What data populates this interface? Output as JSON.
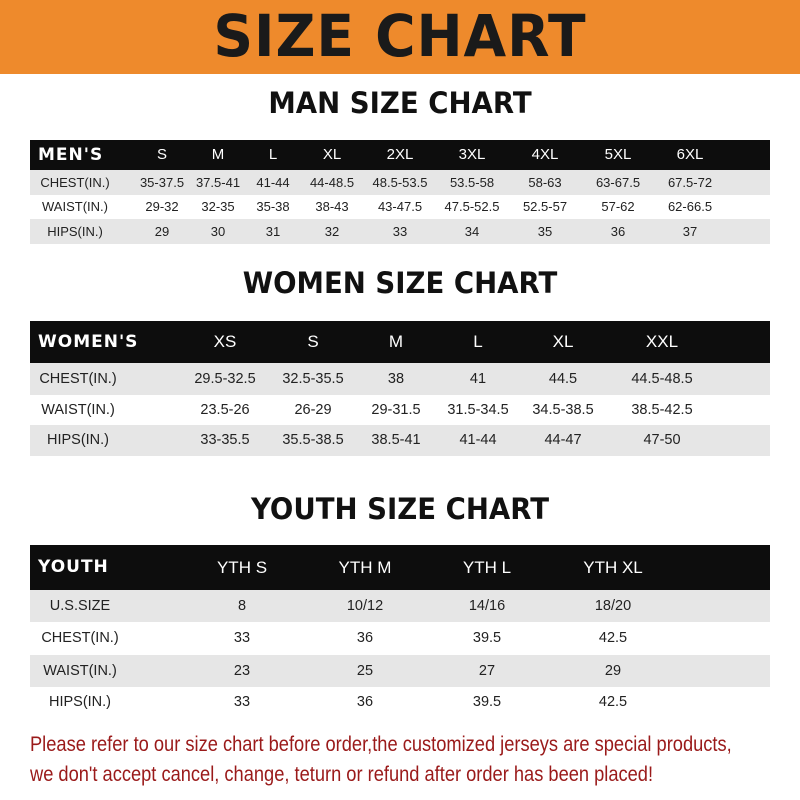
{
  "banner": {
    "title": "SIZE CHART",
    "color": "#ee8a2c"
  },
  "men": {
    "title": "MAN SIZE CHART",
    "header": [
      "MEN'S",
      "S",
      "M",
      "L",
      "XL",
      "2XL",
      "3XL",
      "4XL",
      "5XL",
      "6XL"
    ],
    "rows": [
      [
        "CHEST(IN.)",
        "35-37.5",
        "37.5-41",
        "41-44",
        "44-48.5",
        "48.5-53.5",
        "53.5-58",
        "58-63",
        "63-67.5",
        "67.5-72"
      ],
      [
        "WAIST(IN.)",
        "29-32",
        "32-35",
        "35-38",
        "38-43",
        "43-47.5",
        "47.5-52.5",
        "52.5-57",
        "57-62",
        "62-66.5"
      ],
      [
        "HIPS(IN.)",
        "29",
        "30",
        "31",
        "32",
        "33",
        "34",
        "35",
        "36",
        "37"
      ]
    ]
  },
  "women": {
    "title": "WOMEN SIZE CHART",
    "header": [
      "WOMEN'S",
      "XS",
      "S",
      "M",
      "L",
      "XL",
      "XXL"
    ],
    "rows": [
      [
        "CHEST(IN.)",
        "29.5-32.5",
        "32.5-35.5",
        "38",
        "41",
        "44.5",
        "44.5-48.5"
      ],
      [
        "WAIST(IN.)",
        "23.5-26",
        "26-29",
        "29-31.5",
        "31.5-34.5",
        "34.5-38.5",
        "38.5-42.5"
      ],
      [
        "HIPS(IN.)",
        "33-35.5",
        "35.5-38.5",
        "38.5-41",
        "41-44",
        "44-47",
        "47-50"
      ]
    ]
  },
  "youth": {
    "title": "YOUTH SIZE CHART",
    "header": [
      "YOUTH",
      "YTH S",
      "YTH M",
      "YTH L",
      "YTH XL"
    ],
    "rows": [
      [
        "U.S.SIZE",
        "8",
        "10/12",
        "14/16",
        "18/20"
      ],
      [
        "CHEST(IN.)",
        "33",
        "36",
        "39.5",
        "42.5"
      ],
      [
        "WAIST(IN.)",
        "23",
        "25",
        "27",
        "29"
      ],
      [
        "HIPS(IN.)",
        "33",
        "36",
        "39.5",
        "42.5"
      ]
    ]
  },
  "notice": {
    "line1": "Please refer to our size chart before order,the customized jerseys are special products,",
    "line2": "we don't accept cancel, change, teturn or refund after order has been placed!",
    "color": "#9a1a1a"
  }
}
